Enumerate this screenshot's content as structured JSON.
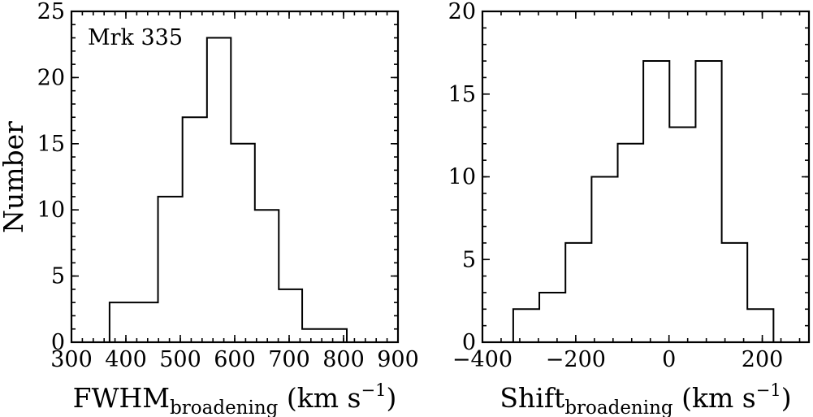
{
  "chart_data": [
    {
      "type": "histogram",
      "annotation": "Mrk 335",
      "xlabel": "FWHM",
      "xlabel_subscript": "broadening",
      "xlabel_units": "(km s",
      "xlabel_units_sup": "−1",
      "xlabel_units_close": ")",
      "ylabel": "Number",
      "xlim": [
        300,
        900
      ],
      "ylim": [
        0,
        25
      ],
      "xticks": [
        300,
        400,
        500,
        600,
        700,
        800,
        900
      ],
      "xtick_labels": [
        "300",
        "400",
        "500",
        "600",
        "700",
        "800",
        "900"
      ],
      "yticks": [
        0,
        5,
        10,
        15,
        20,
        25
      ],
      "ytick_labels": [
        "0",
        "5",
        "10",
        "15",
        "20",
        "25"
      ],
      "bin_edges": [
        370,
        459,
        504,
        549,
        593,
        637,
        681,
        724,
        806
      ],
      "counts": [
        3,
        11,
        17,
        23,
        15,
        10,
        4,
        1
      ]
    },
    {
      "type": "histogram",
      "xlabel": "Shift",
      "xlabel_subscript": "broadening",
      "xlabel_units": "(km s",
      "xlabel_units_sup": "−1",
      "xlabel_units_close": ")",
      "xlim": [
        -400,
        300
      ],
      "ylim": [
        0,
        20
      ],
      "xticks": [
        -400,
        -200,
        0,
        200
      ],
      "xtick_labels": [
        "−400",
        "−200",
        "0",
        "200"
      ],
      "yticks": [
        0,
        5,
        10,
        15,
        20
      ],
      "ytick_labels": [
        "0",
        "5",
        "10",
        "15",
        "20"
      ],
      "bin_edges": [
        -334,
        -278,
        -222,
        -166,
        -110,
        -55,
        1,
        57,
        113,
        168,
        224
      ],
      "counts": [
        2,
        3,
        6,
        10,
        12,
        17,
        13,
        17,
        6,
        2
      ]
    }
  ]
}
